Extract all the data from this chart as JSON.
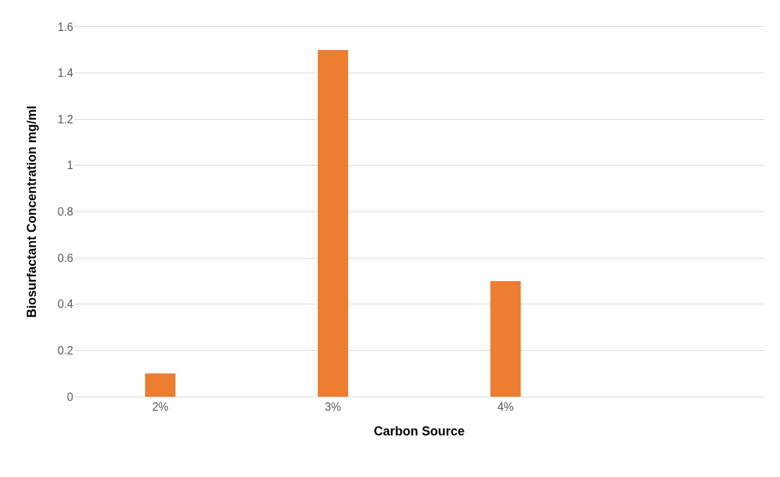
{
  "chart_data": {
    "type": "bar",
    "xlabel": "Carbon Source",
    "ylabel": "Biosurfactant Concentration mg/ml",
    "categories": [
      "2%",
      "3%",
      "4%",
      null
    ],
    "values": [
      0.1,
      1.5,
      0.5,
      null
    ],
    "color": "#ed7d31",
    "ylim": [
      0,
      1.6
    ],
    "yticks": [
      0,
      0.2,
      0.4,
      0.6,
      0.8,
      1,
      1.2,
      1.4,
      1.6
    ],
    "grid": "y"
  }
}
